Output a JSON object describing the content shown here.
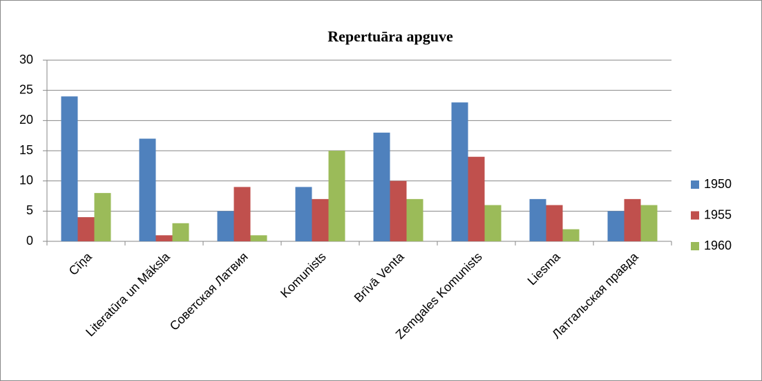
{
  "chart_data": {
    "type": "bar",
    "title": "Repertuāra apguve",
    "categories": [
      "Cīņa",
      "Literatūra un Māksla",
      "Советская Латвия",
      "Komunists",
      "Brīvā Venta",
      "Zemgales Komunists",
      "Liesma",
      "Латгальская правда"
    ],
    "series": [
      {
        "name": "1950",
        "color": "#4f81bd",
        "values": [
          24,
          17,
          5,
          9,
          18,
          23,
          7,
          5
        ]
      },
      {
        "name": "1955",
        "color": "#c0504d",
        "values": [
          4,
          1,
          9,
          7,
          10,
          14,
          6,
          7
        ]
      },
      {
        "name": "1960",
        "color": "#9bbb59",
        "values": [
          8,
          3,
          1,
          15,
          7,
          6,
          2,
          6
        ]
      }
    ],
    "ylim": [
      0,
      30
    ],
    "yticks": [
      0,
      5,
      10,
      15,
      20,
      25,
      30
    ],
    "grid": true,
    "legend": "right"
  }
}
